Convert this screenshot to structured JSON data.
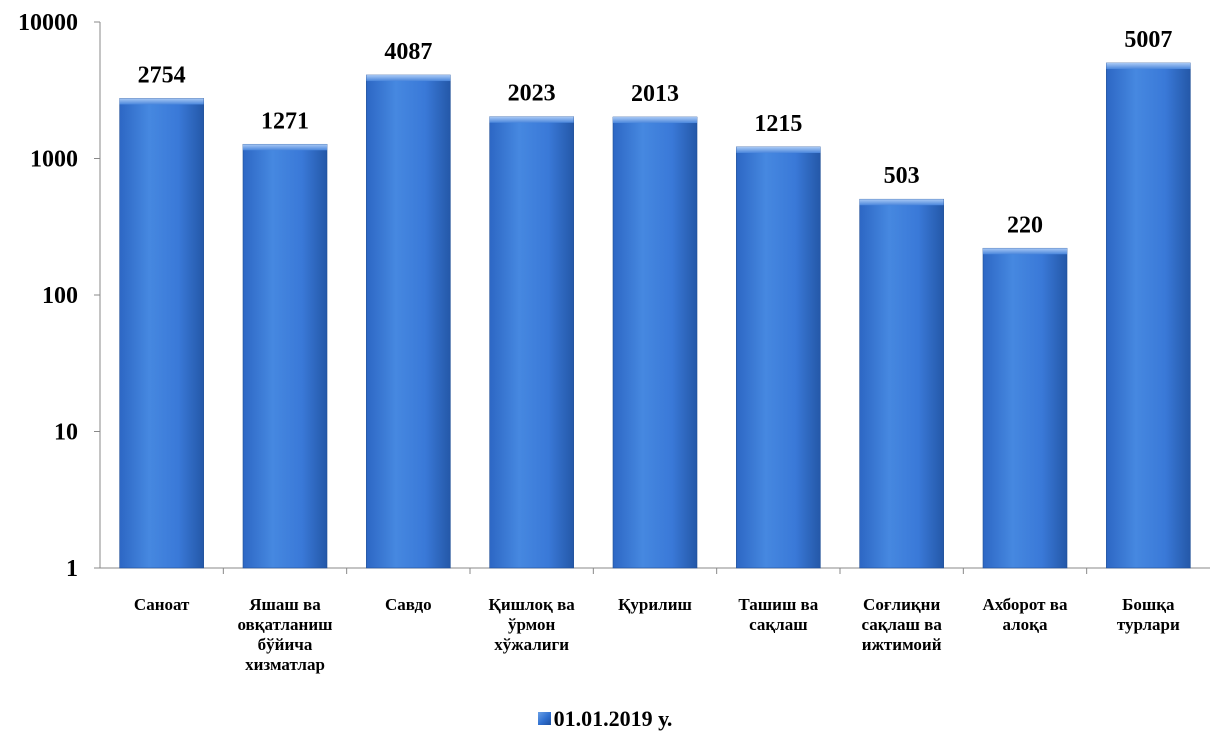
{
  "chart_data": {
    "type": "bar",
    "yscale": "log",
    "ylim": [
      1,
      10000
    ],
    "yticks": [
      "1",
      "10",
      "100",
      "1000",
      "10000"
    ],
    "ytick_values": [
      1,
      10,
      100,
      1000,
      10000
    ],
    "categories": [
      [
        "Саноат"
      ],
      [
        "Яшаш ва",
        "овқатланиш",
        "бўйича",
        "хизматлар"
      ],
      [
        "Савдо"
      ],
      [
        "Қишлоқ ва",
        "ўрмон",
        "хўжалиги"
      ],
      [
        "Қурилиш"
      ],
      [
        "Ташиш ва",
        "сақлаш"
      ],
      [
        "Соғлиқни",
        "сақлаш ва",
        "ижтимоий"
      ],
      [
        "Ахборот ва",
        "алоқа"
      ],
      [
        "Бошқа",
        "турлари"
      ]
    ],
    "series": [
      {
        "name": "01.01.2019 у.",
        "values": [
          2754,
          1271,
          4087,
          2023,
          2013,
          1215,
          503,
          220,
          5007
        ],
        "labels": [
          "2754",
          "1271",
          "4087",
          "2023",
          "2013",
          "1215",
          "503",
          "220",
          "5007"
        ],
        "color": "#3a78d6"
      }
    ],
    "grid": false,
    "legend_position": "bottom"
  }
}
